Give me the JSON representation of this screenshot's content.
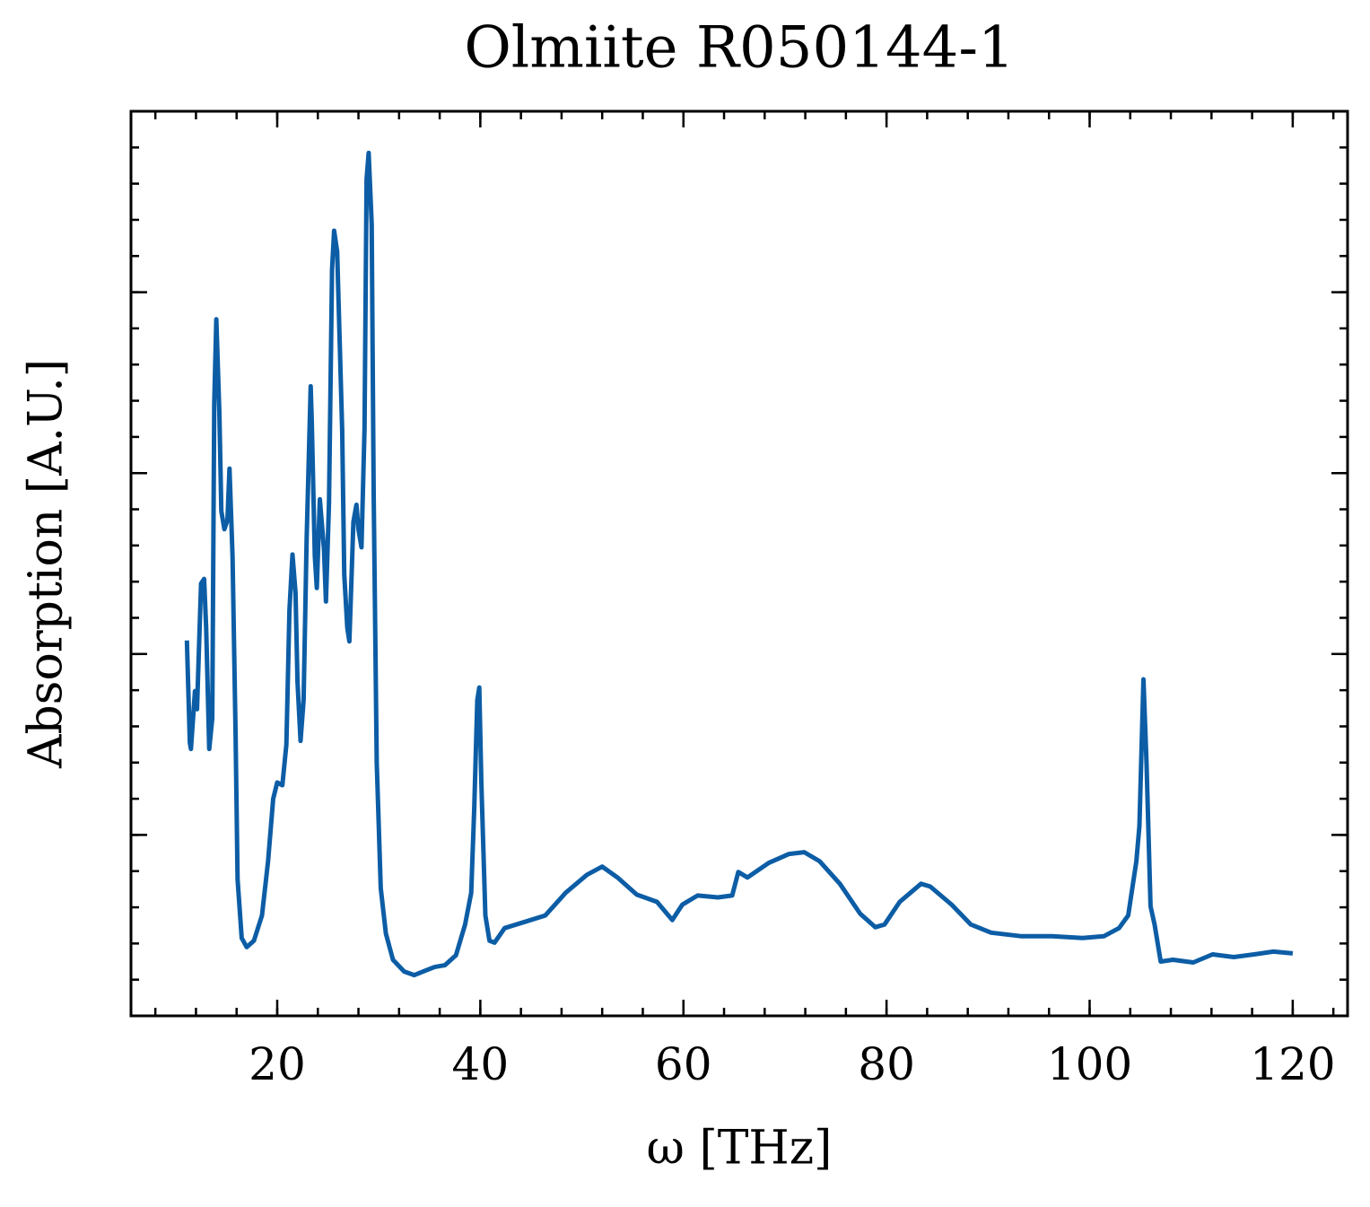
{
  "chart_data": {
    "type": "line",
    "title": "Olmiite R050144-1",
    "xlabel": "ω [THz]",
    "ylabel": "Absorption [A.U.]",
    "x": [
      11.1,
      11.4,
      11.5,
      11.9,
      12.1,
      12.5,
      12.8,
      13.0,
      13.3,
      13.6,
      13.8,
      14.0,
      14.3,
      14.5,
      14.8,
      15.1,
      15.3,
      15.6,
      15.9,
      16.1,
      16.5,
      17.0,
      17.7,
      18.5,
      19.1,
      19.6,
      20.0,
      20.5,
      20.9,
      21.2,
      21.5,
      21.8,
      22.0,
      22.3,
      22.6,
      22.9,
      23.3,
      23.4,
      23.7,
      23.9,
      24.2,
      24.6,
      24.8,
      25.1,
      25.4,
      25.6,
      25.9,
      26.4,
      26.6,
      26.9,
      27.1,
      27.5,
      27.8,
      28.0,
      28.3,
      28.6,
      28.8,
      29.0,
      29.3,
      29.5,
      29.8,
      30.2,
      30.7,
      31.4,
      32.5,
      33.5,
      34.6,
      35.5,
      36.5,
      37.6,
      38.5,
      39.1,
      39.4,
      39.7,
      39.9,
      40.1,
      40.5,
      40.9,
      41.4,
      42.4,
      44.4,
      46.4,
      48.4,
      50.5,
      52.0,
      53.5,
      55.4,
      57.4,
      58.9,
      59.9,
      61.4,
      63.4,
      64.8,
      65.4,
      66.3,
      68.4,
      70.4,
      71.9,
      73.4,
      75.4,
      77.4,
      78.9,
      79.8,
      81.3,
      83.4,
      84.3,
      86.4,
      88.3,
      90.3,
      93.3,
      96.3,
      99.3,
      101.4,
      102.9,
      103.8,
      104.6,
      104.9,
      105.3,
      105.6,
      106.0,
      106.4,
      107.0,
      108.2,
      110.2,
      112.1,
      114.2,
      116.2,
      118.1,
      120.0
    ],
    "series": [
      {
        "name": "Olmiite R050144-1",
        "color": "#0c5da5",
        "values": [
          0.415,
          0.302,
          0.295,
          0.359,
          0.339,
          0.478,
          0.483,
          0.429,
          0.295,
          0.329,
          0.677,
          0.77,
          0.667,
          0.558,
          0.538,
          0.548,
          0.605,
          0.508,
          0.31,
          0.151,
          0.086,
          0.076,
          0.083,
          0.111,
          0.171,
          0.24,
          0.258,
          0.255,
          0.3,
          0.448,
          0.51,
          0.468,
          0.369,
          0.304,
          0.349,
          0.528,
          0.696,
          0.657,
          0.508,
          0.473,
          0.571,
          0.516,
          0.458,
          0.567,
          0.825,
          0.868,
          0.845,
          0.647,
          0.488,
          0.429,
          0.414,
          0.546,
          0.565,
          0.538,
          0.518,
          0.649,
          0.925,
          0.954,
          0.875,
          0.577,
          0.28,
          0.141,
          0.091,
          0.062,
          0.049,
          0.045,
          0.05,
          0.054,
          0.056,
          0.067,
          0.101,
          0.136,
          0.23,
          0.349,
          0.363,
          0.258,
          0.111,
          0.083,
          0.081,
          0.097,
          0.104,
          0.111,
          0.136,
          0.156,
          0.165,
          0.153,
          0.134,
          0.126,
          0.106,
          0.123,
          0.133,
          0.131,
          0.133,
          0.159,
          0.153,
          0.169,
          0.179,
          0.181,
          0.171,
          0.146,
          0.113,
          0.098,
          0.101,
          0.126,
          0.146,
          0.143,
          0.123,
          0.101,
          0.092,
          0.088,
          0.088,
          0.086,
          0.088,
          0.097,
          0.111,
          0.171,
          0.21,
          0.372,
          0.28,
          0.121,
          0.101,
          0.06,
          0.062,
          0.059,
          0.068,
          0.065,
          0.068,
          0.071,
          0.069
        ]
      }
    ],
    "xlim": [
      5.6,
      125.4
    ],
    "xticks": [
      20,
      40,
      60,
      80,
      100,
      120
    ],
    "ylim": [
      0,
      1
    ],
    "yticks": [
      0,
      0.2,
      0.4,
      0.6,
      0.8
    ]
  }
}
